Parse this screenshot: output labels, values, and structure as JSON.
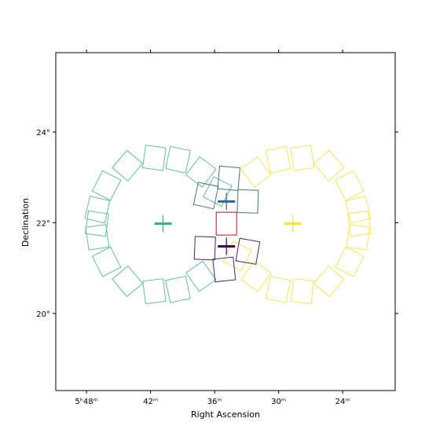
{
  "chart_data": {
    "type": "scatter",
    "title": "",
    "xlabel": "Right Ascension",
    "ylabel": "Declination",
    "xlim": [
      5.848,
      5.318
    ],
    "ylim": [
      18.3,
      25.75
    ],
    "x_ticks": [
      {
        "value": 5.8,
        "label": "5ʰ48ᵐ"
      },
      {
        "value": 5.7,
        "label": "42ᵐ"
      },
      {
        "value": 5.6,
        "label": "36ᵐ"
      },
      {
        "value": 5.5,
        "label": "30ᵐ"
      },
      {
        "value": 5.4,
        "label": "24ᵐ"
      }
    ],
    "y_ticks": [
      {
        "value": 20,
        "label": "20°"
      },
      {
        "value": 22,
        "label": "22°"
      },
      {
        "value": 24,
        "label": "24°"
      }
    ],
    "grid": false,
    "colors": {
      "green": "#5ec793",
      "yellow": "#fde74c",
      "steel": "#3f7590",
      "purple": "#4b2470",
      "red": "#c0121b",
      "green_marker": "#2fb47c",
      "yellow_marker": "#fde725",
      "steel_marker": "#2a6a95",
      "purple_marker": "#440154"
    },
    "marker_crosses": [
      {
        "ra": 5.6805,
        "dec": 21.98,
        "color": "green_marker"
      },
      {
        "ra": 5.478,
        "dec": 21.98,
        "color": "yellow_marker"
      },
      {
        "ra": 5.5815,
        "dec": 22.47,
        "color": "steel_marker"
      },
      {
        "ra": 5.5815,
        "dec": 21.48,
        "color": "purple_marker"
      }
    ],
    "footprints": [
      {
        "group": "green",
        "ra": 5.7837,
        "dec": 21.98,
        "rot": 8
      },
      {
        "group": "green",
        "ra": 5.7831,
        "dec": 22.29,
        "rot": 13
      },
      {
        "group": "green",
        "ra": 5.7687,
        "dec": 22.82,
        "rot": 27
      },
      {
        "group": "green",
        "ra": 5.7361,
        "dec": 23.26,
        "rot": 40
      },
      {
        "group": "green",
        "ra": 5.6942,
        "dec": 23.43,
        "rot": 8
      },
      {
        "group": "green",
        "ra": 5.6572,
        "dec": 23.39,
        "rot": 12
      },
      {
        "group": "green",
        "ra": 5.6213,
        "dec": 23.12,
        "rot": 37
      },
      {
        "group": "green",
        "ra": 5.5954,
        "dec": 22.69,
        "rot": 27
      },
      {
        "group": "green",
        "ra": 5.7831,
        "dec": 21.68,
        "rot": -8
      },
      {
        "group": "green",
        "ra": 5.7687,
        "dec": 21.14,
        "rot": -27
      },
      {
        "group": "green",
        "ra": 5.7361,
        "dec": 20.71,
        "rot": -40
      },
      {
        "group": "green",
        "ra": 5.6942,
        "dec": 20.49,
        "rot": -7
      },
      {
        "group": "green",
        "ra": 5.6572,
        "dec": 20.53,
        "rot": -12
      },
      {
        "group": "green",
        "ra": 5.6213,
        "dec": 20.82,
        "rot": -35
      },
      {
        "group": "yellow",
        "ra": 5.3741,
        "dec": 21.98,
        "rot": -8
      },
      {
        "group": "yellow",
        "ra": 5.3759,
        "dec": 22.29,
        "rot": -13
      },
      {
        "group": "yellow",
        "ra": 5.3892,
        "dec": 22.82,
        "rot": -27
      },
      {
        "group": "yellow",
        "ra": 5.4214,
        "dec": 23.26,
        "rot": -40
      },
      {
        "group": "yellow",
        "ra": 5.463,
        "dec": 23.43,
        "rot": -8
      },
      {
        "group": "yellow",
        "ra": 5.5005,
        "dec": 23.39,
        "rot": -12
      },
      {
        "group": "yellow",
        "ra": 5.5353,
        "dec": 23.12,
        "rot": -37
      },
      {
        "group": "yellow",
        "ra": 5.3759,
        "dec": 21.68,
        "rot": 8
      },
      {
        "group": "yellow",
        "ra": 5.3892,
        "dec": 21.14,
        "rot": 27
      },
      {
        "group": "yellow",
        "ra": 5.4214,
        "dec": 20.71,
        "rot": 40
      },
      {
        "group": "yellow",
        "ra": 5.463,
        "dec": 20.49,
        "rot": 7
      },
      {
        "group": "yellow",
        "ra": 5.5005,
        "dec": 20.53,
        "rot": 12
      },
      {
        "group": "yellow",
        "ra": 5.5353,
        "dec": 20.82,
        "rot": 35
      },
      {
        "group": "yellow",
        "ra": 5.5647,
        "dec": 21.27,
        "rot": 27
      },
      {
        "group": "steel",
        "ra": 5.6135,
        "dec": 22.6,
        "rot": 12
      },
      {
        "group": "steel",
        "ra": 5.5779,
        "dec": 22.98,
        "rot": 5
      },
      {
        "group": "steel",
        "ra": 5.5481,
        "dec": 22.47,
        "rot": 2
      },
      {
        "group": "purple",
        "ra": 5.6152,
        "dec": 21.44,
        "rot": 2
      },
      {
        "group": "purple",
        "ra": 5.5851,
        "dec": 20.97,
        "rot": -6
      },
      {
        "group": "purple",
        "ra": 5.5481,
        "dec": 21.37,
        "rot": 10
      },
      {
        "group": "red",
        "ra": 5.5815,
        "dec": 21.98,
        "rot": 0
      }
    ]
  }
}
